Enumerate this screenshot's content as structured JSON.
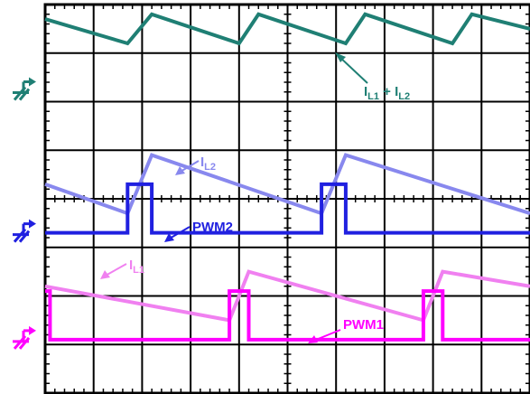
{
  "chart_data": {
    "type": "line",
    "grid": true,
    "grid_divisions": {
      "x": 10,
      "y": 8
    },
    "xlim": [
      0,
      10
    ],
    "ylim": [
      0,
      8
    ],
    "series": [
      {
        "name": "IL1 + IL2",
        "color": "#1f7f74",
        "x": [
          0,
          1.7,
          2.2,
          4.0,
          4.4,
          6.2,
          6.6,
          8.4,
          8.8,
          10
        ],
        "y": [
          7.7,
          7.2,
          7.8,
          7.2,
          7.8,
          7.2,
          7.8,
          7.2,
          7.8,
          7.5
        ]
      },
      {
        "name": "IL2",
        "color": "#8888ee",
        "x": [
          0,
          1.7,
          2.2,
          5.7,
          6.2,
          10
        ],
        "y": [
          4.3,
          3.7,
          4.9,
          3.7,
          4.9,
          3.7
        ]
      },
      {
        "name": "PWM2",
        "color": "#2020e0",
        "x": [
          0,
          1.7,
          1.7,
          2.2,
          2.2,
          5.7,
          5.7,
          6.2,
          6.2,
          10
        ],
        "y": [
          3.3,
          3.3,
          4.3,
          4.3,
          3.3,
          3.3,
          4.3,
          4.3,
          3.3,
          3.3
        ]
      },
      {
        "name": "IL1",
        "color": "#f080f0",
        "x": [
          0,
          3.8,
          4.2,
          7.8,
          8.2,
          10
        ],
        "y": [
          2.2,
          1.5,
          2.5,
          1.5,
          2.5,
          2.2
        ]
      },
      {
        "name": "PWM1",
        "color": "#ff00ff",
        "x": [
          0,
          0.1,
          0.1,
          0.2,
          0.2,
          3.8,
          3.8,
          4.2,
          4.2,
          7.8,
          7.8,
          8.2,
          8.2,
          10
        ],
        "y": [
          2.1,
          2.1,
          1.1,
          1.1,
          1.1,
          1.1,
          2.1,
          2.1,
          1.1,
          1.1,
          2.1,
          2.1,
          1.1,
          1.1
        ]
      }
    ],
    "annotations": [
      {
        "main": "I",
        "sub": "L1",
        "mid": " + I",
        "sub2": "L2",
        "color": "#1f7f74"
      },
      {
        "main": "I",
        "sub": "L2",
        "color": "#8888ee"
      },
      {
        "main": "PWM2",
        "color": "#2020e0"
      },
      {
        "main": "I",
        "sub": "L1",
        "color": "#f080f0"
      },
      {
        "main": "PWM1",
        "color": "#ff00ff"
      }
    ],
    "ground_markers": [
      {
        "color": "#1f7f74"
      },
      {
        "color": "#2020e0"
      },
      {
        "color": "#ff00ff"
      }
    ]
  }
}
